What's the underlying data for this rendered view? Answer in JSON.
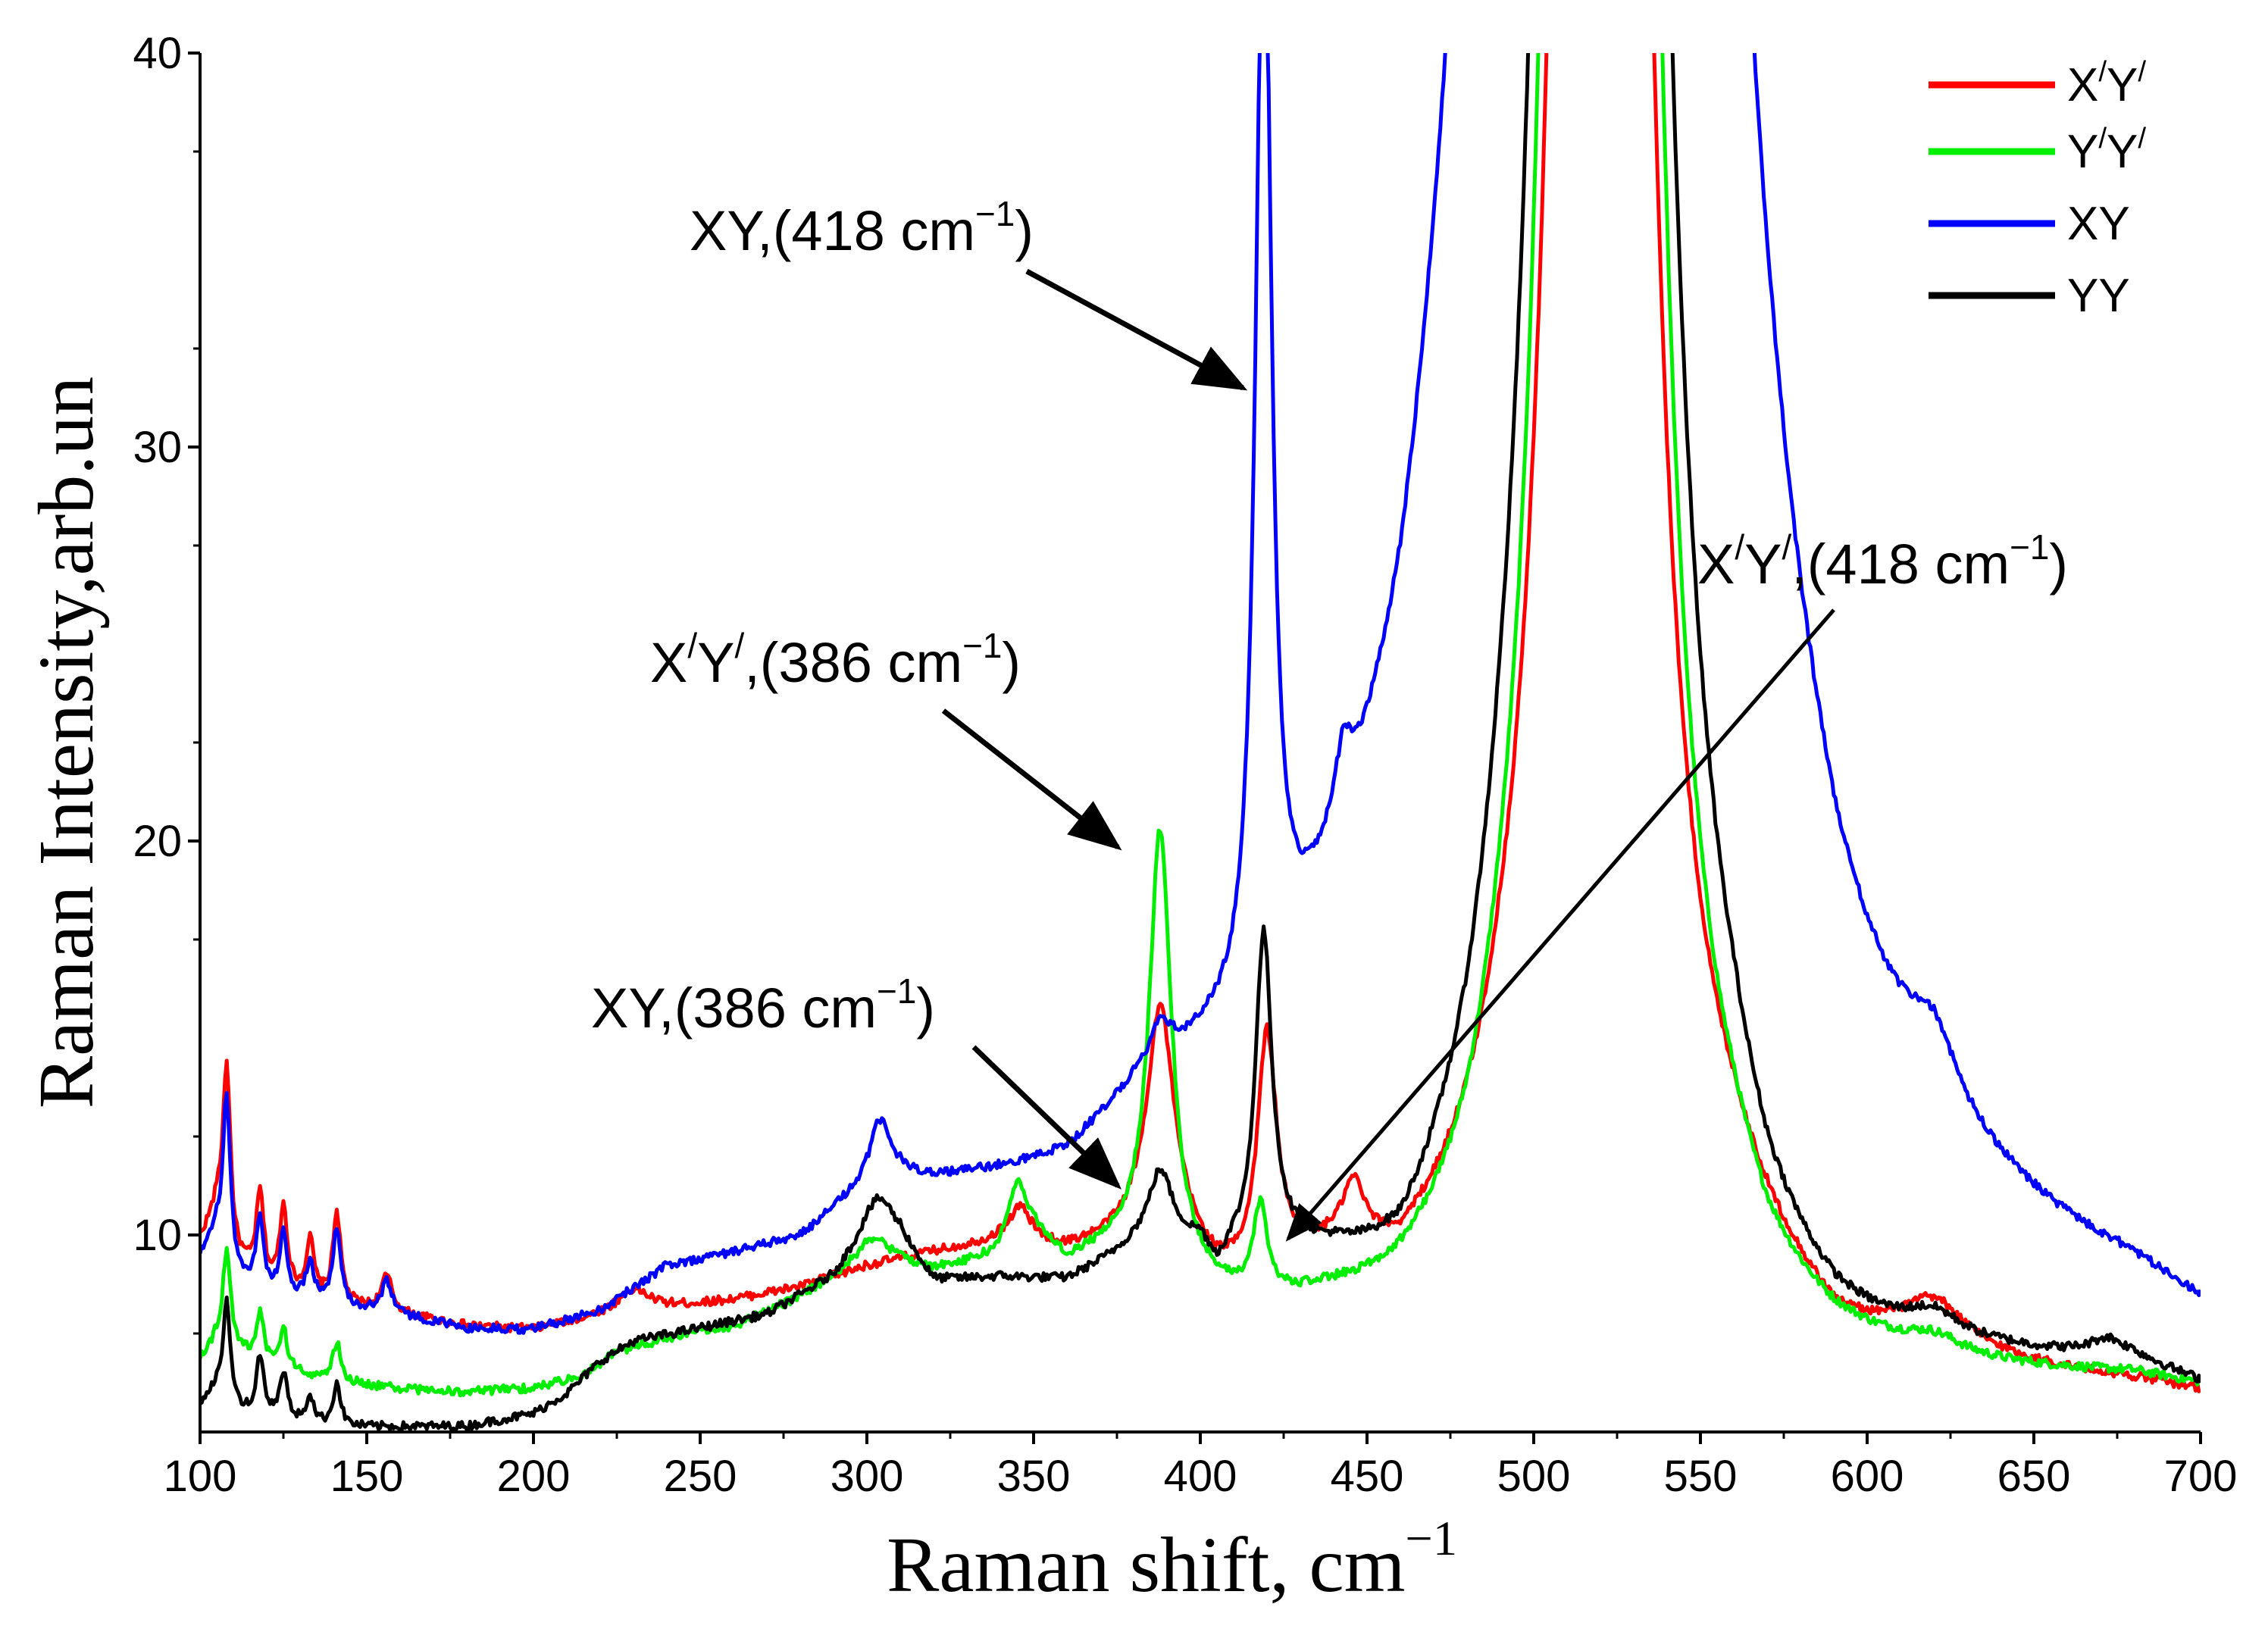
{
  "chart_data": {
    "type": "line",
    "title": "",
    "xlabel": "Raman shift, cm",
    "xlabel_sup": "−1",
    "ylabel": "Raman Intensity,arb.un",
    "xlim": [
      100,
      700
    ],
    "ylim": [
      5,
      40
    ],
    "xticks": [
      100,
      150,
      200,
      250,
      300,
      350,
      400,
      450,
      500,
      550,
      600,
      650,
      700
    ],
    "yticks": [
      10,
      20,
      30,
      40
    ],
    "grid": false,
    "legend_position": "top-right",
    "series": [
      {
        "name": "X′Y′",
        "name_base": "X",
        "name_sup1": "/",
        "name_mid": "Y",
        "name_sup2": "/",
        "color": "#ff0000",
        "baseline": [
          [
            100,
            9.8
          ],
          [
            105,
            10.5
          ],
          [
            110,
            9.3
          ],
          [
            120,
            8.6
          ],
          [
            140,
            8.2
          ],
          [
            160,
            7.9
          ],
          [
            180,
            7.6
          ],
          [
            200,
            7.5
          ],
          [
            220,
            7.8
          ],
          [
            240,
            8.0
          ],
          [
            260,
            8.2
          ],
          [
            280,
            8.5
          ],
          [
            300,
            9.0
          ],
          [
            320,
            9.3
          ],
          [
            340,
            9.5
          ],
          [
            360,
            9.2
          ],
          [
            380,
            9.4
          ],
          [
            395,
            9.0
          ],
          [
            405,
            8.2
          ],
          [
            415,
            8.0
          ],
          [
            430,
            8.3
          ],
          [
            440,
            8.3
          ],
          [
            460,
            7.5
          ],
          [
            480,
            8.0
          ],
          [
            490,
            8.5
          ],
          [
            560,
            8.2
          ],
          [
            570,
            7.5
          ],
          [
            590,
            6.3
          ],
          [
            640,
            6.2
          ],
          [
            680,
            6.0
          ],
          [
            700,
            5.8
          ]
        ],
        "peaks": [
          [
            108,
            4.5,
            1.4
          ],
          [
            118,
            2.2,
            1.4
          ],
          [
            125,
            2.1,
            1.4
          ],
          [
            133,
            1.4,
            1.4
          ],
          [
            141,
            2.3,
            1.4
          ],
          [
            156,
            0.9,
            2.0
          ],
          [
            230,
            0.6,
            6.0
          ],
          [
            346,
            0.9,
            4.0
          ],
          [
            388,
            6.0,
            5.0
          ],
          [
            420,
            6.0,
            3.5
          ],
          [
            446,
            1.5,
            4.0
          ],
          [
            520,
            200,
            7.0
          ],
          [
            620,
            1.2,
            12.0
          ]
        ]
      },
      {
        "name": "Y′Y′",
        "name_base": "Y",
        "name_sup1": "/",
        "name_mid": "Y",
        "name_sup2": "/",
        "color": "#00ee00",
        "baseline": [
          [
            100,
            6.8
          ],
          [
            105,
            7.2
          ],
          [
            110,
            7.0
          ],
          [
            120,
            6.6
          ],
          [
            140,
            6.2
          ],
          [
            160,
            6.0
          ],
          [
            180,
            5.9
          ],
          [
            200,
            6.0
          ],
          [
            215,
            6.3
          ],
          [
            225,
            6.9
          ],
          [
            240,
            7.2
          ],
          [
            260,
            7.5
          ],
          [
            280,
            8.2
          ],
          [
            300,
            9.2
          ],
          [
            320,
            8.8
          ],
          [
            340,
            9.0
          ],
          [
            350,
            9.5
          ],
          [
            360,
            8.8
          ],
          [
            372,
            9.0
          ],
          [
            380,
            9.0
          ],
          [
            400,
            8.0
          ],
          [
            410,
            7.5
          ],
          [
            425,
            7.2
          ],
          [
            440,
            7.0
          ],
          [
            460,
            6.5
          ],
          [
            480,
            6.5
          ],
          [
            490,
            7.0
          ],
          [
            560,
            6.8
          ],
          [
            570,
            6.2
          ],
          [
            590,
            5.9
          ],
          [
            640,
            6.0
          ],
          [
            680,
            6.1
          ],
          [
            700,
            5.9
          ]
        ],
        "peaks": [
          [
            108,
            2.5,
            1.4
          ],
          [
            118,
            1.2,
            1.4
          ],
          [
            125,
            1.0,
            1.4
          ],
          [
            141,
            1.0,
            1.4
          ],
          [
            303,
            0.5,
            5.0
          ],
          [
            345,
            1.6,
            3.5
          ],
          [
            388,
            11.0,
            4.0
          ],
          [
            418,
            2.2,
            2.5
          ],
          [
            520,
            600,
            4.5
          ],
          [
            620,
            0.4,
            10.0
          ]
        ]
      },
      {
        "name": "XY",
        "name_base": "XY",
        "name_sup1": "",
        "name_mid": "",
        "name_sup2": "",
        "color": "#0000ff",
        "baseline": [
          [
            100,
            9.0
          ],
          [
            105,
            9.5
          ],
          [
            110,
            8.5
          ],
          [
            120,
            8.0
          ],
          [
            140,
            7.7
          ],
          [
            160,
            7.4
          ],
          [
            180,
            7.0
          ],
          [
            200,
            6.9
          ],
          [
            220,
            7.3
          ],
          [
            240,
            8.3
          ],
          [
            260,
            8.5
          ],
          [
            280,
            8.7
          ],
          [
            295,
            9.5
          ],
          [
            310,
            9.8
          ],
          [
            330,
            9.6
          ],
          [
            360,
            9.4
          ],
          [
            380,
            10.2
          ],
          [
            400,
            10.0
          ],
          [
            410,
            9.6
          ],
          [
            430,
            9.2
          ],
          [
            440,
            9.2
          ],
          [
            460,
            8.2
          ],
          [
            480,
            9.0
          ],
          [
            490,
            9.5
          ],
          [
            560,
            9.0
          ],
          [
            570,
            8.0
          ],
          [
            590,
            6.8
          ],
          [
            640,
            7.0
          ],
          [
            680,
            6.8
          ],
          [
            700,
            6.3
          ]
        ],
        "peaks": [
          [
            108,
            4.2,
            1.4
          ],
          [
            118,
            1.8,
            1.4
          ],
          [
            125,
            1.6,
            1.4
          ],
          [
            133,
            1.0,
            1.4
          ],
          [
            141,
            2.0,
            1.4
          ],
          [
            156,
            0.8,
            2.0
          ],
          [
            304,
            1.7,
            4.0
          ],
          [
            388,
            1.1,
            4.0
          ],
          [
            419,
            29.0,
            2.8
          ],
          [
            443,
            1.6,
            3.0
          ],
          [
            520,
            500,
            12.0
          ],
          [
            620,
            1.7,
            9.0
          ]
        ]
      },
      {
        "name": "YY",
        "name_base": "YY",
        "name_sup1": "",
        "name_mid": "",
        "name_sup2": "",
        "color": "#000000",
        "baseline": [
          [
            100,
            5.6
          ],
          [
            105,
            5.9
          ],
          [
            110,
            5.4
          ],
          [
            120,
            5.2
          ],
          [
            140,
            5.0
          ],
          [
            160,
            5.0
          ],
          [
            180,
            5.0
          ],
          [
            200,
            5.3
          ],
          [
            210,
            5.8
          ],
          [
            220,
            6.6
          ],
          [
            230,
            7.1
          ],
          [
            250,
            7.4
          ],
          [
            270,
            7.7
          ],
          [
            290,
            8.6
          ],
          [
            300,
            9.6
          ],
          [
            310,
            9.5
          ],
          [
            320,
            8.4
          ],
          [
            340,
            8.4
          ],
          [
            360,
            8.2
          ],
          [
            380,
            8.8
          ],
          [
            400,
            8.6
          ],
          [
            405,
            7.8
          ],
          [
            410,
            8.1
          ],
          [
            425,
            8.0
          ],
          [
            440,
            7.3
          ],
          [
            460,
            6.0
          ],
          [
            480,
            6.4
          ],
          [
            490,
            7.0
          ],
          [
            560,
            6.8
          ],
          [
            570,
            6.0
          ],
          [
            590,
            5.6
          ],
          [
            640,
            6.1
          ],
          [
            680,
            6.3
          ],
          [
            700,
            5.8
          ]
        ],
        "peaks": [
          [
            108,
            2.6,
            1.4
          ],
          [
            118,
            1.5,
            1.4
          ],
          [
            125,
            1.2,
            1.4
          ],
          [
            133,
            0.7,
            1.4
          ],
          [
            141,
            1.1,
            1.4
          ],
          [
            304,
            1.0,
            5.0
          ],
          [
            388,
            1.9,
            4.5
          ],
          [
            419,
            8.0,
            3.0
          ],
          [
            520,
            400,
            6.5
          ],
          [
            620,
            0.6,
            10.0
          ],
          [
            672,
            0.4,
            6.0
          ]
        ]
      }
    ],
    "annotations": [
      {
        "id": "xy-418",
        "base": "XY,(418 cm",
        "sup1": "−1",
        "mid": "",
        "sup2": "",
        "tail": ")"
      },
      {
        "id": "xpyp-386",
        "base": "X",
        "sup1": "/",
        "mid": "Y",
        "sup2": "/",
        "tail2": ",(386 cm",
        "sup3": "−1",
        "tail": ")"
      },
      {
        "id": "xy-386",
        "base": "XY,(386 cm",
        "sup1": "−1",
        "mid": "",
        "sup2": "",
        "tail": ")"
      },
      {
        "id": "xpyp-418",
        "base": "X",
        "sup1": "/",
        "mid": "Y",
        "sup2": "/",
        "tail2": ",(418 cm",
        "sup3": "−1",
        "tail": ")"
      }
    ]
  }
}
